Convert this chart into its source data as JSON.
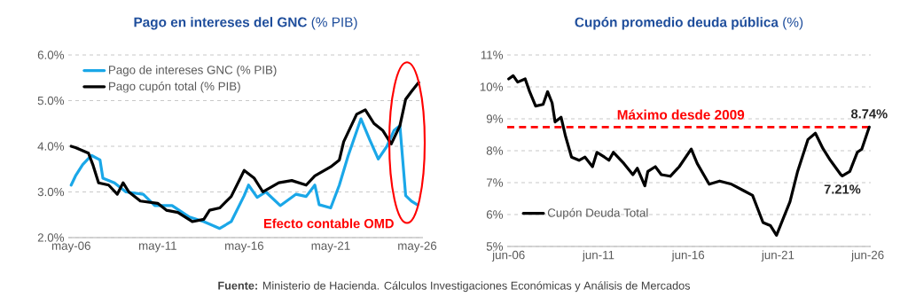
{
  "chart_data": [
    {
      "type": "line",
      "title": "**Pago en intereses del GNC** (% PIB)",
      "xlim": [
        "2006-03",
        "2026-09"
      ],
      "ylim": [
        2.0,
        6.0
      ],
      "xticks": [
        {
          "value": "2006-05",
          "label": "may-06"
        },
        {
          "value": "2011-05",
          "label": "may-11"
        },
        {
          "value": "2016-05",
          "label": "may-16"
        },
        {
          "value": "2021-05",
          "label": "may-21"
        },
        {
          "value": "2026-05",
          "label": "may-26"
        }
      ],
      "yticks": [
        {
          "value": 2.0,
          "label": "2.0%"
        },
        {
          "value": 3.0,
          "label": "3.0%"
        },
        {
          "value": 4.0,
          "label": "4.0%"
        },
        {
          "value": 5.0,
          "label": "5.0%"
        },
        {
          "value": 6.0,
          "label": "6.0%"
        }
      ],
      "grid": "y",
      "legend": "top left",
      "line_style": "solid",
      "marker": "none",
      "series": [
        {
          "name": "Pago de intereses GNC (% PIB)",
          "color": "#1aa7e8",
          "x": [
            "2006-05",
            "2006-08",
            "2007-01",
            "2007-07",
            "2008-01",
            "2008-03",
            "2008-11",
            "2009-07",
            "2010-07",
            "2011-03",
            "2012-03",
            "2013-03",
            "2014-01",
            "2014-12",
            "2015-08",
            "2016-05",
            "2016-08",
            "2017-02",
            "2017-08",
            "2018-06",
            "2019-05",
            "2019-12",
            "2020-06",
            "2020-09",
            "2021-05",
            "2021-11",
            "2022-05",
            "2023-02",
            "2023-08",
            "2024-02",
            "2024-08",
            "2025-01",
            "2025-05",
            "2025-09",
            "2026-01",
            "2026-05"
          ],
          "values": [
            3.15,
            3.35,
            3.6,
            3.8,
            3.7,
            3.3,
            3.2,
            3.0,
            2.95,
            2.7,
            2.7,
            2.45,
            2.35,
            2.2,
            2.35,
            2.92,
            3.15,
            2.88,
            3.0,
            2.7,
            2.95,
            2.9,
            3.15,
            2.72,
            2.65,
            3.15,
            3.78,
            4.6,
            4.15,
            3.72,
            4.0,
            4.35,
            4.45,
            2.92,
            2.8,
            2.72
          ]
        },
        {
          "name": "Pago cupón total (% PIB)",
          "color": "#000000",
          "x": [
            "2006-05",
            "2006-08",
            "2007-05",
            "2007-08",
            "2007-12",
            "2008-07",
            "2009-01",
            "2009-05",
            "2009-09",
            "2010-05",
            "2011-05",
            "2011-11",
            "2012-07",
            "2013-05",
            "2014-01",
            "2014-05",
            "2014-12",
            "2015-08",
            "2016-05",
            "2016-12",
            "2017-06",
            "2018-05",
            "2019-02",
            "2019-12",
            "2020-06",
            "2021-05",
            "2021-11",
            "2022-02",
            "2022-11",
            "2023-05",
            "2023-11",
            "2024-05",
            "2024-11",
            "2025-05",
            "2025-09",
            "2026-01",
            "2026-06"
          ],
          "values": [
            4.0,
            3.97,
            3.85,
            3.6,
            3.2,
            3.15,
            2.95,
            3.2,
            3.0,
            2.8,
            2.75,
            2.6,
            2.55,
            2.35,
            2.4,
            2.6,
            2.65,
            2.9,
            3.47,
            3.3,
            3.0,
            3.2,
            3.25,
            3.15,
            3.35,
            3.55,
            3.7,
            4.1,
            4.7,
            4.8,
            4.5,
            4.35,
            4.05,
            4.45,
            5.03,
            5.2,
            5.4
          ]
        }
      ],
      "annotations": [
        "Efecto contable OMD",
        "**Fuente:** Ministerio de Hacienda. Cálculos Investigaciones Económicas y Análisis de Mercados"
      ]
    },
    {
      "type": "line",
      "title": "**Cupón promedio deuda pública** (%)",
      "xlim": [
        "2006-05",
        "2026-08"
      ],
      "ylim": [
        5,
        11
      ],
      "xticks": [
        {
          "value": "2006-06",
          "label": "jun-06"
        },
        {
          "value": "2011-06",
          "label": "jun-11"
        },
        {
          "value": "2016-06",
          "label": "jun-16"
        },
        {
          "value": "2021-06",
          "label": "jun-21"
        },
        {
          "value": "2026-06",
          "label": "jun-26"
        }
      ],
      "yticks": [
        {
          "value": 5,
          "label": "5%"
        },
        {
          "value": 6,
          "label": "6%"
        },
        {
          "value": 7,
          "label": "7%"
        },
        {
          "value": 8,
          "label": "8%"
        },
        {
          "value": 9,
          "label": "9%"
        },
        {
          "value": 10,
          "label": "10%"
        },
        {
          "value": 11,
          "label": "11%"
        }
      ],
      "grid": "y",
      "legend": "bottom left",
      "line_style": "solid",
      "marker": "none",
      "series": [
        {
          "name": "Cupón Deuda Total",
          "color": "#000000",
          "x": [
            "2006-06",
            "2006-09",
            "2006-12",
            "2007-05",
            "2007-08",
            "2007-12",
            "2008-05",
            "2008-08",
            "2008-11",
            "2009-01",
            "2009-05",
            "2009-08",
            "2009-12",
            "2010-05",
            "2010-09",
            "2011-02",
            "2011-05",
            "2011-10",
            "2012-01",
            "2012-04",
            "2012-11",
            "2013-05",
            "2013-08",
            "2014-01",
            "2014-03",
            "2014-08",
            "2014-12",
            "2015-06",
            "2015-12",
            "2016-08",
            "2016-12",
            "2017-08",
            "2018-03",
            "2018-11",
            "2019-07",
            "2020-01",
            "2020-08",
            "2021-01",
            "2021-05",
            "2021-11",
            "2022-02",
            "2022-07",
            "2023-02",
            "2023-07",
            "2023-12",
            "2024-05",
            "2024-12",
            "2025-01",
            "2025-06",
            "2025-11",
            "2026-02",
            "2026-07"
          ],
          "values": [
            10.25,
            10.35,
            10.15,
            10.25,
            9.85,
            9.4,
            9.45,
            9.85,
            9.5,
            8.9,
            9.05,
            8.45,
            7.8,
            7.7,
            7.8,
            7.5,
            7.95,
            7.8,
            7.7,
            7.95,
            7.6,
            7.25,
            7.45,
            6.9,
            7.35,
            7.5,
            7.25,
            7.2,
            7.5,
            8.05,
            7.6,
            6.95,
            7.05,
            6.95,
            6.75,
            6.6,
            5.75,
            5.65,
            5.35,
            6.05,
            6.4,
            7.33,
            8.35,
            8.55,
            8.07,
            7.7,
            7.25,
            7.21,
            7.35,
            7.95,
            8.05,
            8.74
          ]
        }
      ],
      "ref_lines": [
        {
          "axis": "y",
          "value": 8.74,
          "label": "Máximo desde 2009",
          "color": "#ff0000",
          "line_style": "dashed"
        }
      ],
      "annotations": [
        {
          "text": "8.74%",
          "x": "2026-07",
          "y": 8.74
        },
        {
          "text": "7.21%",
          "x": "2025-01",
          "y": 7.21
        }
      ]
    }
  ]
}
